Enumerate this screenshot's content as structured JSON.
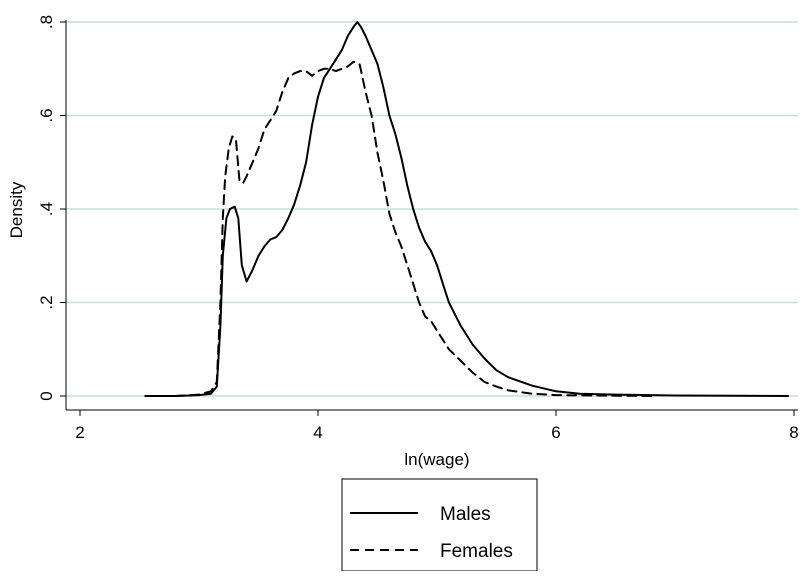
{
  "chart_data": {
    "type": "line",
    "title": "",
    "xlabel": "ln(wage)",
    "ylabel": "Density",
    "xlim": [
      2,
      8
    ],
    "ylim": [
      0,
      0.8
    ],
    "x_ticks": [
      {
        "value": 2,
        "label": "2"
      },
      {
        "value": 4,
        "label": "4"
      },
      {
        "value": 6,
        "label": "6"
      },
      {
        "value": 8,
        "label": "8"
      }
    ],
    "y_ticks": [
      {
        "value": 0,
        "label": "0"
      },
      {
        "value": 0.2,
        "label": ".2"
      },
      {
        "value": 0.4,
        "label": ".4"
      },
      {
        "value": 0.6,
        "label": ".6"
      },
      {
        "value": 0.8,
        "label": ".8"
      }
    ],
    "grid": "horizontal",
    "grid_color": "#c8dedd",
    "legend_position": "bottom",
    "series": [
      {
        "name": "Males",
        "style": "solid",
        "color": "#000000",
        "x": [
          2.55,
          2.8,
          3.0,
          3.1,
          3.15,
          3.18,
          3.2,
          3.23,
          3.26,
          3.3,
          3.33,
          3.36,
          3.4,
          3.45,
          3.5,
          3.55,
          3.6,
          3.65,
          3.7,
          3.75,
          3.8,
          3.85,
          3.9,
          3.95,
          4.0,
          4.05,
          4.1,
          4.15,
          4.2,
          4.25,
          4.3,
          4.33,
          4.36,
          4.4,
          4.45,
          4.5,
          4.55,
          4.6,
          4.65,
          4.7,
          4.75,
          4.8,
          4.85,
          4.9,
          4.95,
          5.0,
          5.05,
          5.1,
          5.2,
          5.3,
          5.4,
          5.5,
          5.6,
          5.8,
          6.0,
          6.2,
          6.5,
          7.0,
          7.5,
          7.95
        ],
        "y": [
          0,
          0,
          0.002,
          0.005,
          0.02,
          0.15,
          0.3,
          0.38,
          0.4,
          0.405,
          0.38,
          0.28,
          0.245,
          0.27,
          0.3,
          0.32,
          0.335,
          0.34,
          0.355,
          0.38,
          0.41,
          0.45,
          0.5,
          0.58,
          0.64,
          0.68,
          0.7,
          0.72,
          0.74,
          0.77,
          0.79,
          0.8,
          0.79,
          0.77,
          0.74,
          0.71,
          0.66,
          0.6,
          0.56,
          0.51,
          0.45,
          0.4,
          0.36,
          0.33,
          0.31,
          0.28,
          0.24,
          0.2,
          0.15,
          0.11,
          0.08,
          0.055,
          0.04,
          0.022,
          0.01,
          0.005,
          0.003,
          0.001,
          0.0005,
          0
        ]
      },
      {
        "name": "Females",
        "style": "dashed",
        "color": "#000000",
        "x": [
          2.55,
          2.8,
          3.0,
          3.1,
          3.15,
          3.18,
          3.2,
          3.22,
          3.25,
          3.28,
          3.31,
          3.34,
          3.37,
          3.4,
          3.45,
          3.5,
          3.55,
          3.6,
          3.65,
          3.7,
          3.75,
          3.8,
          3.85,
          3.9,
          3.95,
          4.0,
          4.05,
          4.1,
          4.15,
          4.2,
          4.25,
          4.3,
          4.35,
          4.4,
          4.45,
          4.5,
          4.55,
          4.6,
          4.65,
          4.7,
          4.75,
          4.8,
          4.85,
          4.9,
          4.95,
          5.0,
          5.1,
          5.2,
          5.3,
          5.4,
          5.5,
          5.6,
          5.8,
          6.0,
          6.3,
          6.8
        ],
        "y": [
          0,
          0,
          0.003,
          0.01,
          0.03,
          0.2,
          0.38,
          0.47,
          0.53,
          0.555,
          0.55,
          0.46,
          0.455,
          0.47,
          0.5,
          0.53,
          0.57,
          0.59,
          0.61,
          0.65,
          0.68,
          0.69,
          0.695,
          0.695,
          0.685,
          0.695,
          0.7,
          0.7,
          0.695,
          0.7,
          0.705,
          0.715,
          0.71,
          0.65,
          0.6,
          0.52,
          0.46,
          0.39,
          0.35,
          0.32,
          0.28,
          0.24,
          0.2,
          0.17,
          0.16,
          0.14,
          0.1,
          0.075,
          0.05,
          0.03,
          0.02,
          0.012,
          0.005,
          0.002,
          0.001,
          0
        ]
      }
    ]
  }
}
